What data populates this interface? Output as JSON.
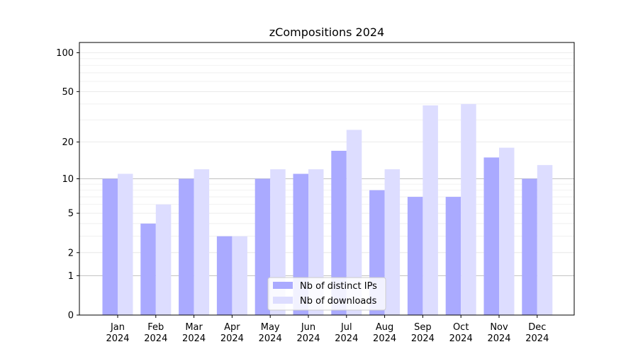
{
  "chart_data": {
    "type": "bar",
    "title": "zCompositions 2024",
    "xlabel": "",
    "ylabel": "",
    "y_scale": "log1p",
    "ylim": [
      0,
      120
    ],
    "y_ticks": [
      0,
      1,
      2,
      5,
      10,
      20,
      50,
      100
    ],
    "categories": [
      {
        "month": "Jan",
        "year": "2024"
      },
      {
        "month": "Feb",
        "year": "2024"
      },
      {
        "month": "Mar",
        "year": "2024"
      },
      {
        "month": "Apr",
        "year": "2024"
      },
      {
        "month": "May",
        "year": "2024"
      },
      {
        "month": "Jun",
        "year": "2024"
      },
      {
        "month": "Jul",
        "year": "2024"
      },
      {
        "month": "Aug",
        "year": "2024"
      },
      {
        "month": "Sep",
        "year": "2024"
      },
      {
        "month": "Oct",
        "year": "2024"
      },
      {
        "month": "Nov",
        "year": "2024"
      },
      {
        "month": "Dec",
        "year": "2024"
      }
    ],
    "series": [
      {
        "name": "Nb of distinct IPs",
        "color": "#aaaaff",
        "values": [
          10,
          4,
          10,
          3,
          10,
          11,
          17,
          8,
          7,
          7,
          15,
          10
        ]
      },
      {
        "name": "Nb of downloads",
        "color": "#ddddff",
        "values": [
          11,
          6,
          12,
          3,
          12,
          12,
          25,
          12,
          39,
          40,
          18,
          13
        ]
      }
    ],
    "grid": true,
    "legend_position": "lower-center"
  }
}
